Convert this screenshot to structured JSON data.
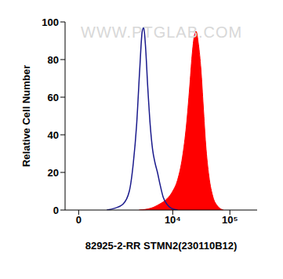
{
  "chart_data": {
    "type": "histogram",
    "annotations": [
      "WWW.PTGLAB.COM"
    ],
    "x_label": "82925-2-RR STMN2(230110B12)",
    "y_label": "Relative Cell Number",
    "xlim": [
      -260,
      300000
    ],
    "xticks": [
      0,
      {
        "value": 10000,
        "label": "10⁴"
      },
      {
        "value": 100000,
        "label": "10⁵"
      }
    ],
    "ylim": [
      0,
      100
    ],
    "yticks": [
      0,
      20,
      40,
      60,
      80,
      100
    ],
    "series": [
      {
        "type": "line",
        "color": "#1a1a8c",
        "x": [
          630,
          920,
          1300,
          1710,
          2020,
          2310,
          2630,
          2910,
          3100,
          3310,
          3650,
          4030,
          4440,
          4900,
          5400,
          5950,
          6780,
          7960,
          9360,
          12160
        ],
        "values": [
          0,
          1,
          3,
          10,
          25,
          45,
          75,
          95,
          97,
          88,
          65,
          45,
          32,
          25,
          20,
          14,
          7,
          3,
          1,
          0
        ]
      },
      {
        "type": "area",
        "color": "#ff0000",
        "x": [
          2550,
          4160,
          5760,
          7960,
          9990,
          12160,
          14780,
          17360,
          19750,
          21790,
          24000,
          25630,
          28250,
          31140,
          34310,
          37790,
          43030,
          50620,
          61430,
          77110
        ],
        "values": [
          0,
          1,
          3,
          6,
          10,
          16,
          28,
          45,
          65,
          82,
          93,
          95,
          88,
          75,
          55,
          35,
          18,
          7,
          2,
          0
        ]
      }
    ]
  }
}
